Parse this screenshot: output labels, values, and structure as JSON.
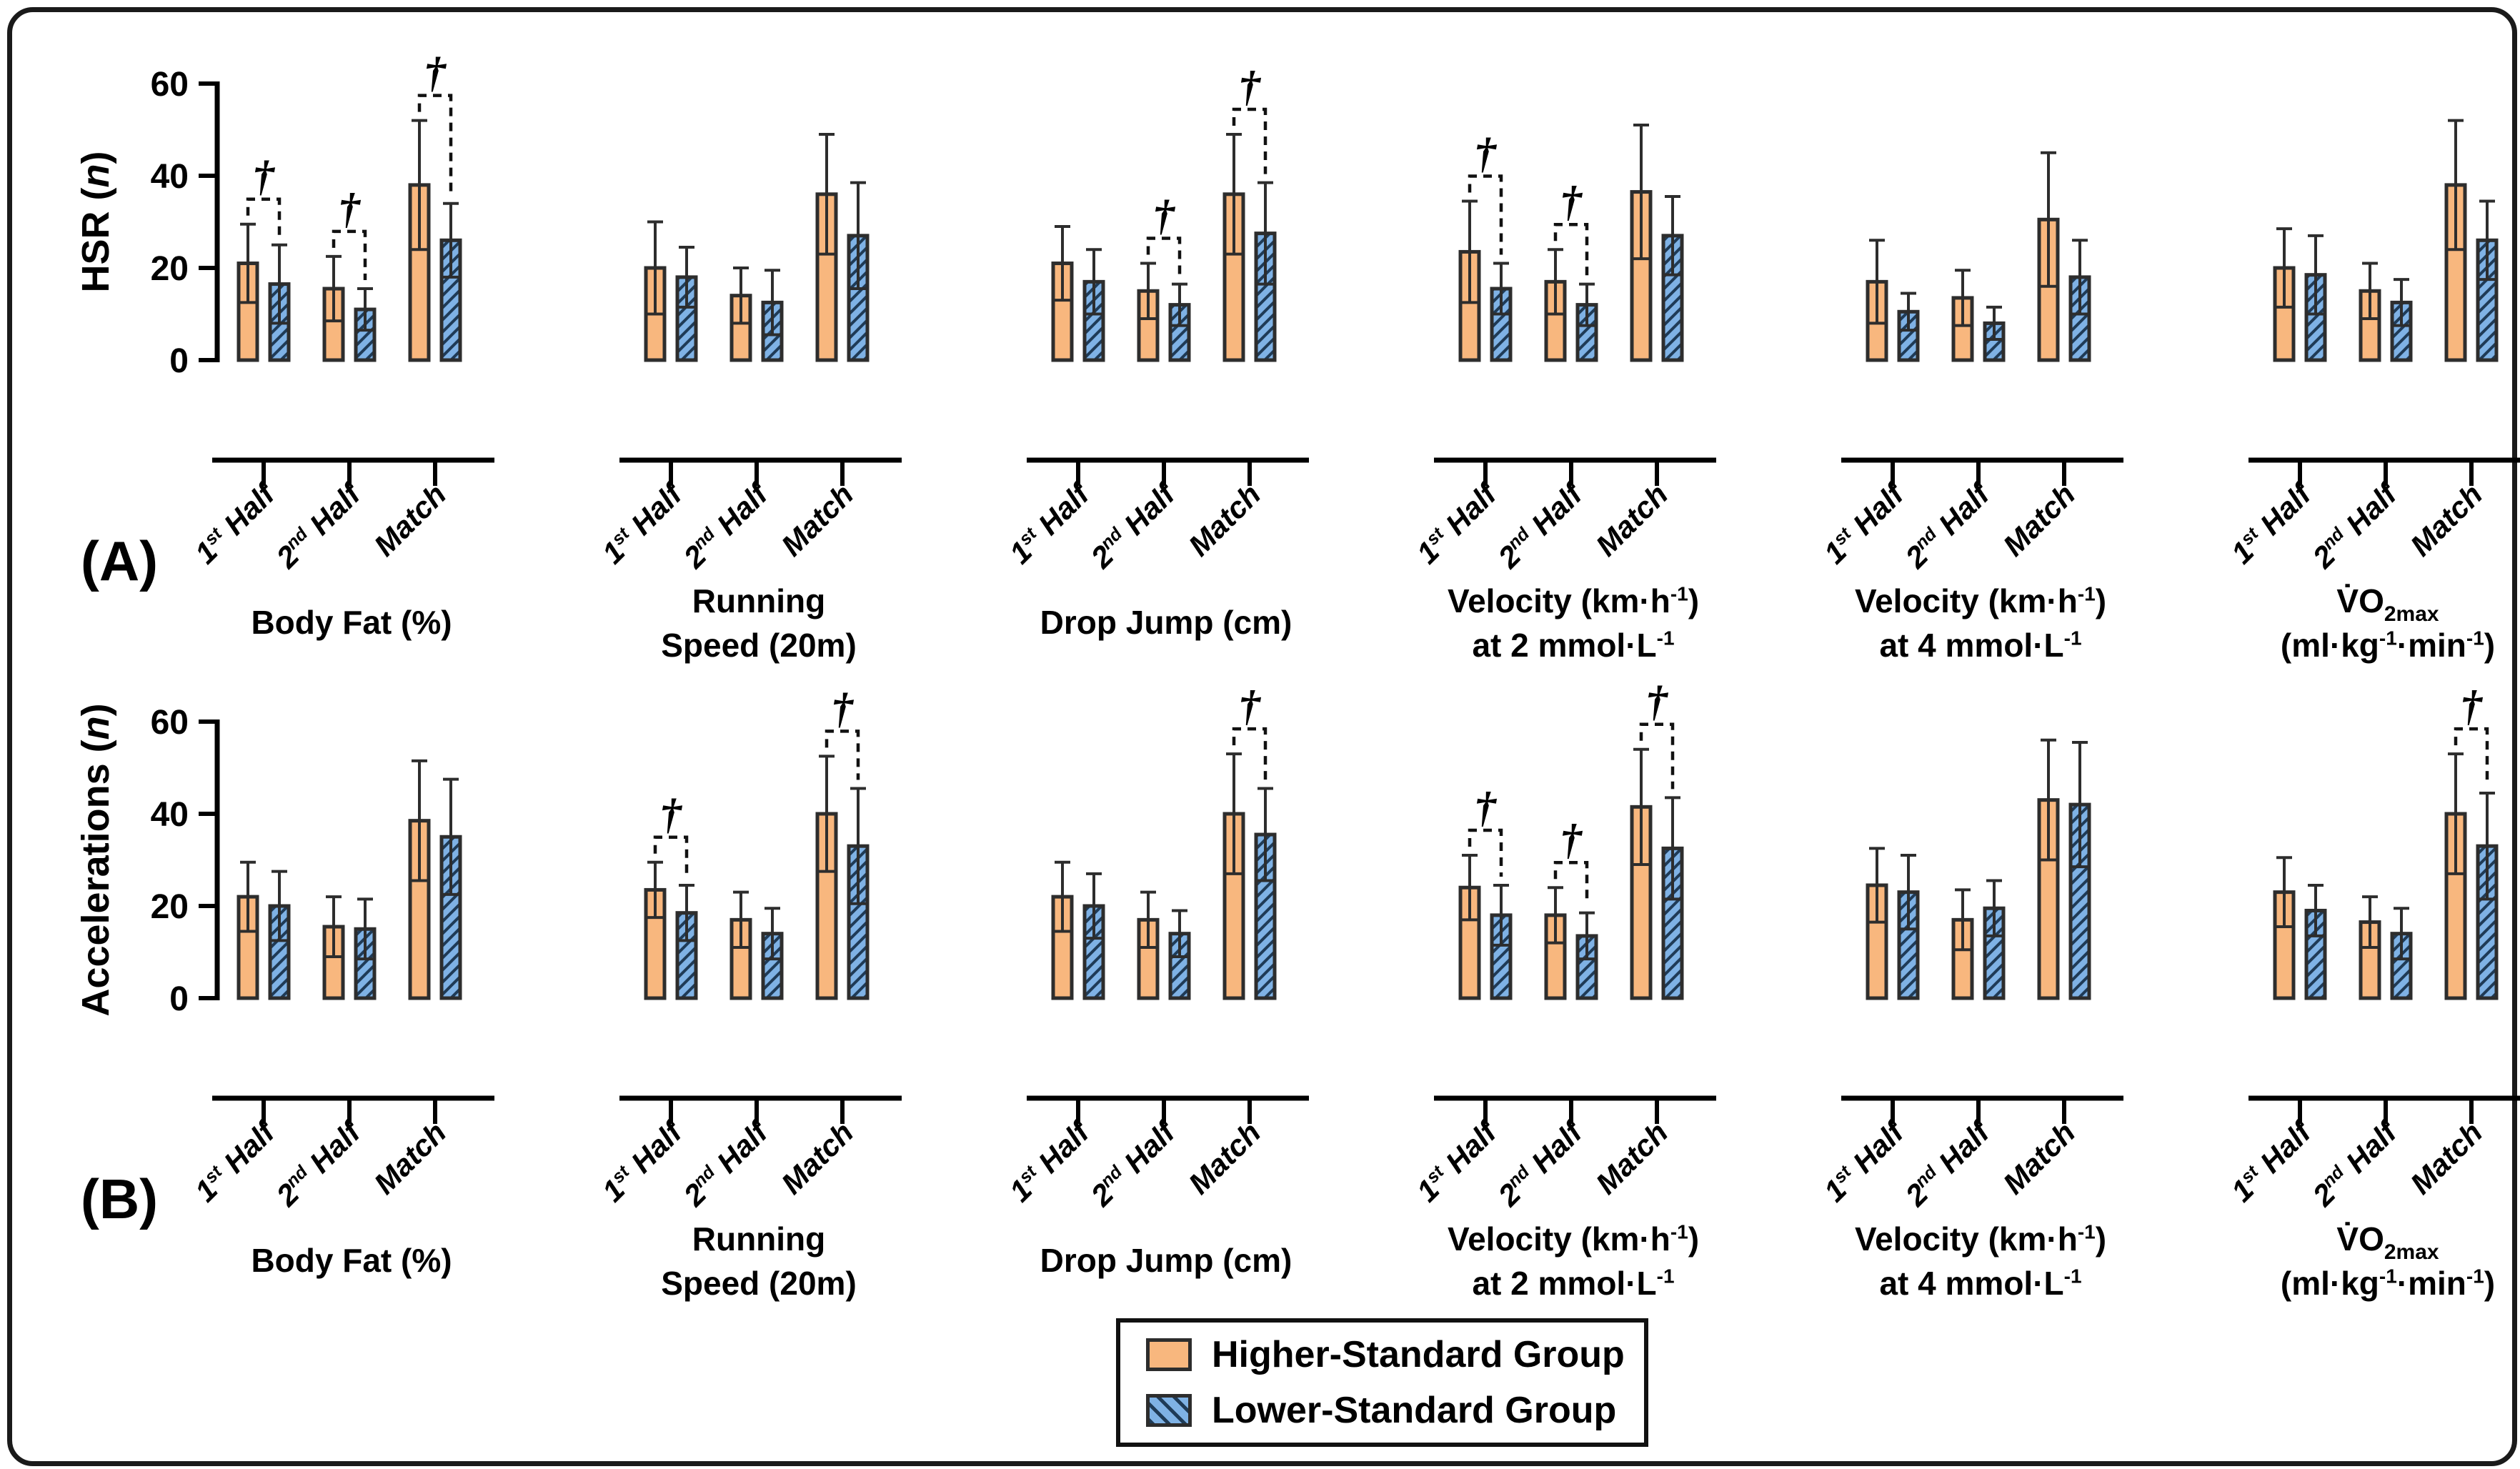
{
  "figure": {
    "panel_labels": [
      "(A)",
      "(B)"
    ],
    "dagger_symbol": "†",
    "y_axes": [
      {
        "panel": "A",
        "label": "HSR (n)",
        "label_segments": [
          {
            "t": "HSR ("
          },
          {
            "t": "n",
            "i": true
          },
          {
            "t": ")"
          }
        ],
        "ticks": [
          0,
          20,
          40,
          60
        ]
      },
      {
        "panel": "B",
        "label": "Accelerations (n)",
        "label_segments": [
          {
            "t": "Accelerations ("
          },
          {
            "t": "n",
            "i": true
          },
          {
            "t": ")"
          }
        ],
        "ticks": [
          0,
          20,
          40,
          60
        ]
      }
    ],
    "x_tick_segments": [
      [
        {
          "t": "1"
        },
        {
          "t": "st",
          "sup": true
        },
        {
          "t": " Half"
        }
      ],
      [
        {
          "t": "2"
        },
        {
          "t": "nd",
          "sup": true
        },
        {
          "t": " Half"
        }
      ],
      [
        {
          "t": "Match"
        }
      ]
    ],
    "legend": {
      "items": [
        {
          "label": "Higher-Standard Group",
          "swatch": "solid-orange"
        },
        {
          "label": "Lower-Standard Group",
          "swatch": "hatched-blue"
        }
      ]
    },
    "colors": {
      "higher_fill": "#F8B77E",
      "lower_fill": "#7FB2E5",
      "outline": "#2d2d2d",
      "hatch_line": "#1f3b57",
      "axis": "#000000"
    }
  },
  "chart_data": [
    {
      "type": "bar",
      "panel": "A",
      "title": "Body Fat (%)",
      "title_segments": [
        [
          {
            "t": "Body Fat (%)"
          }
        ]
      ],
      "categories": [
        "1st Half",
        "2nd Half",
        "Match"
      ],
      "ylabel": "HSR (n)",
      "ylim": [
        0,
        60
      ],
      "series": [
        {
          "name": "Higher-Standard Group",
          "values": [
            21,
            15.5,
            38
          ],
          "sd": [
            8.5,
            7,
            14
          ]
        },
        {
          "name": "Lower-Standard Group",
          "values": [
            16.5,
            11,
            26
          ],
          "sd": [
            8.5,
            4.5,
            8
          ]
        }
      ],
      "daggers": [
        true,
        true,
        true
      ]
    },
    {
      "type": "bar",
      "panel": "A",
      "title": "Running Speed (20m)",
      "title_segments": [
        [
          {
            "t": "Running"
          }
        ],
        [
          {
            "t": "Speed (20m)"
          }
        ]
      ],
      "categories": [
        "1st Half",
        "2nd Half",
        "Match"
      ],
      "ylabel": "HSR (n)",
      "ylim": [
        0,
        60
      ],
      "series": [
        {
          "name": "Higher-Standard Group",
          "values": [
            20,
            14,
            36
          ],
          "sd": [
            10,
            6,
            13
          ]
        },
        {
          "name": "Lower-Standard Group",
          "values": [
            18,
            12.5,
            27
          ],
          "sd": [
            6.5,
            7,
            11.5
          ]
        }
      ],
      "daggers": [
        false,
        false,
        false
      ]
    },
    {
      "type": "bar",
      "panel": "A",
      "title": "Drop Jump (cm)",
      "title_segments": [
        [
          {
            "t": "Drop Jump (cm)"
          }
        ]
      ],
      "categories": [
        "1st Half",
        "2nd Half",
        "Match"
      ],
      "ylabel": "HSR (n)",
      "ylim": [
        0,
        60
      ],
      "series": [
        {
          "name": "Higher-Standard Group",
          "values": [
            21,
            15,
            36
          ],
          "sd": [
            8,
            6,
            13
          ]
        },
        {
          "name": "Lower-Standard Group",
          "values": [
            17,
            12,
            27.5
          ],
          "sd": [
            7,
            4.5,
            11
          ]
        }
      ],
      "daggers": [
        false,
        true,
        true
      ]
    },
    {
      "type": "bar",
      "panel": "A",
      "title": "Velocity (km·h-1) at 2 mmol·L-1",
      "title_segments": [
        [
          {
            "t": "Velocity (km·h"
          },
          {
            "t": "-1",
            "sup": true
          },
          {
            "t": ")"
          }
        ],
        [
          {
            "t": "at 2 mmol·L"
          },
          {
            "t": "-1",
            "sup": true
          }
        ]
      ],
      "categories": [
        "1st Half",
        "2nd Half",
        "Match"
      ],
      "ylabel": "HSR (n)",
      "ylim": [
        0,
        60
      ],
      "series": [
        {
          "name": "Higher-Standard Group",
          "values": [
            23.5,
            17,
            36.5
          ],
          "sd": [
            11,
            7,
            14.5
          ]
        },
        {
          "name": "Lower-Standard Group",
          "values": [
            15.5,
            12,
            27
          ],
          "sd": [
            5.5,
            4.5,
            8.5
          ]
        }
      ],
      "daggers": [
        true,
        true,
        false
      ]
    },
    {
      "type": "bar",
      "panel": "A",
      "title": "Velocity (km·h-1) at 4 mmol·L-1",
      "title_segments": [
        [
          {
            "t": "Velocity (km·h"
          },
          {
            "t": "-1",
            "sup": true
          },
          {
            "t": ")"
          }
        ],
        [
          {
            "t": "at 4 mmol·L"
          },
          {
            "t": "-1",
            "sup": true
          }
        ]
      ],
      "categories": [
        "1st Half",
        "2nd Half",
        "Match"
      ],
      "ylabel": "HSR (n)",
      "ylim": [
        0,
        60
      ],
      "series": [
        {
          "name": "Higher-Standard Group",
          "values": [
            17,
            13.5,
            30.5
          ],
          "sd": [
            9,
            6,
            14.5
          ]
        },
        {
          "name": "Lower-Standard Group",
          "values": [
            10.5,
            8,
            18
          ],
          "sd": [
            4,
            3.5,
            8
          ]
        }
      ],
      "daggers": [
        false,
        false,
        false
      ]
    },
    {
      "type": "bar",
      "panel": "A",
      "title": "V̇O2max (ml·kg-1·min-1)",
      "title_segments": [
        [
          {
            "t": "V̇O"
          },
          {
            "t": "2max",
            "sub": true
          }
        ],
        [
          {
            "t": "(ml·kg"
          },
          {
            "t": "-1",
            "sup": true
          },
          {
            "t": "·min"
          },
          {
            "t": "-1",
            "sup": true
          },
          {
            "t": ")"
          }
        ]
      ],
      "categories": [
        "1st Half",
        "2nd Half",
        "Match"
      ],
      "ylabel": "HSR (n)",
      "ylim": [
        0,
        60
      ],
      "series": [
        {
          "name": "Higher-Standard Group",
          "values": [
            20,
            15,
            38
          ],
          "sd": [
            8.5,
            6,
            14
          ]
        },
        {
          "name": "Lower-Standard Group",
          "values": [
            18.5,
            12.5,
            26
          ],
          "sd": [
            8.5,
            5,
            8.5
          ]
        }
      ],
      "daggers": [
        false,
        false,
        false
      ]
    },
    {
      "type": "bar",
      "panel": "B",
      "title": "Body Fat (%)",
      "title_segments": [
        [
          {
            "t": "Body Fat (%)"
          }
        ]
      ],
      "categories": [
        "1st Half",
        "2nd Half",
        "Match"
      ],
      "ylabel": "Accelerations (n)",
      "ylim": [
        0,
        60
      ],
      "series": [
        {
          "name": "Higher-Standard Group",
          "values": [
            22,
            15.5,
            38.5
          ],
          "sd": [
            7.5,
            6.5,
            13
          ]
        },
        {
          "name": "Lower-Standard Group",
          "values": [
            20,
            15,
            35
          ],
          "sd": [
            7.5,
            6.5,
            12.5
          ]
        }
      ],
      "daggers": [
        false,
        false,
        false
      ]
    },
    {
      "type": "bar",
      "panel": "B",
      "title": "Running Speed (20m)",
      "title_segments": [
        [
          {
            "t": "Running"
          }
        ],
        [
          {
            "t": "Speed (20m)"
          }
        ]
      ],
      "categories": [
        "1st Half",
        "2nd Half",
        "Match"
      ],
      "ylabel": "Accelerations (n)",
      "ylim": [
        0,
        60
      ],
      "series": [
        {
          "name": "Higher-Standard Group",
          "values": [
            23.5,
            17,
            40
          ],
          "sd": [
            6,
            6,
            12.5
          ]
        },
        {
          "name": "Lower-Standard Group",
          "values": [
            18.5,
            14,
            33
          ],
          "sd": [
            6,
            5.5,
            12.5
          ]
        }
      ],
      "daggers": [
        true,
        false,
        true
      ]
    },
    {
      "type": "bar",
      "panel": "B",
      "title": "Drop Jump (cm)",
      "title_segments": [
        [
          {
            "t": "Drop Jump (cm)"
          }
        ]
      ],
      "categories": [
        "1st Half",
        "2nd Half",
        "Match"
      ],
      "ylabel": "Accelerations (n)",
      "ylim": [
        0,
        60
      ],
      "series": [
        {
          "name": "Higher-Standard Group",
          "values": [
            22,
            17,
            40
          ],
          "sd": [
            7.5,
            6,
            13
          ]
        },
        {
          "name": "Lower-Standard Group",
          "values": [
            20,
            14,
            35.5
          ],
          "sd": [
            7,
            5,
            10
          ]
        }
      ],
      "daggers": [
        false,
        false,
        true
      ]
    },
    {
      "type": "bar",
      "panel": "B",
      "title": "Velocity (km·h-1) at 2 mmol·L-1",
      "title_segments": [
        [
          {
            "t": "Velocity (km·h"
          },
          {
            "t": "-1",
            "sup": true
          },
          {
            "t": ")"
          }
        ],
        [
          {
            "t": "at 2 mmol·L"
          },
          {
            "t": "-1",
            "sup": true
          }
        ]
      ],
      "categories": [
        "1st Half",
        "2nd Half",
        "Match"
      ],
      "ylabel": "Accelerations (n)",
      "ylim": [
        0,
        60
      ],
      "series": [
        {
          "name": "Higher-Standard Group",
          "values": [
            24,
            18,
            41.5
          ],
          "sd": [
            7,
            6,
            12.5
          ]
        },
        {
          "name": "Lower-Standard Group",
          "values": [
            18,
            13.5,
            32.5
          ],
          "sd": [
            6.5,
            5,
            11
          ]
        }
      ],
      "daggers": [
        true,
        true,
        true
      ]
    },
    {
      "type": "bar",
      "panel": "B",
      "title": "Velocity (km·h-1) at 4 mmol·L-1",
      "title_segments": [
        [
          {
            "t": "Velocity (km·h"
          },
          {
            "t": "-1",
            "sup": true
          },
          {
            "t": ")"
          }
        ],
        [
          {
            "t": "at 4 mmol·L"
          },
          {
            "t": "-1",
            "sup": true
          }
        ]
      ],
      "categories": [
        "1st Half",
        "2nd Half",
        "Match"
      ],
      "ylabel": "Accelerations (n)",
      "ylim": [
        0,
        60
      ],
      "series": [
        {
          "name": "Higher-Standard Group",
          "values": [
            24.5,
            17,
            43
          ],
          "sd": [
            8,
            6.5,
            13
          ]
        },
        {
          "name": "Lower-Standard Group",
          "values": [
            23,
            19.5,
            42
          ],
          "sd": [
            8,
            6,
            13.5
          ]
        }
      ],
      "daggers": [
        false,
        false,
        false
      ]
    },
    {
      "type": "bar",
      "panel": "B",
      "title": "V̇O2max (ml·kg-1·min-1)",
      "title_segments": [
        [
          {
            "t": "V̇O"
          },
          {
            "t": "2max",
            "sub": true
          }
        ],
        [
          {
            "t": "(ml·kg"
          },
          {
            "t": "-1",
            "sup": true
          },
          {
            "t": "·min"
          },
          {
            "t": "-1",
            "sup": true
          },
          {
            "t": ")"
          }
        ]
      ],
      "categories": [
        "1st Half",
        "2nd Half",
        "Match"
      ],
      "ylabel": "Accelerations (n)",
      "ylim": [
        0,
        60
      ],
      "series": [
        {
          "name": "Higher-Standard Group",
          "values": [
            23,
            16.5,
            40
          ],
          "sd": [
            7.5,
            5.5,
            13
          ]
        },
        {
          "name": "Lower-Standard Group",
          "values": [
            19,
            14,
            33
          ],
          "sd": [
            5.5,
            5.5,
            11.5
          ]
        }
      ],
      "daggers": [
        false,
        false,
        true
      ]
    }
  ]
}
